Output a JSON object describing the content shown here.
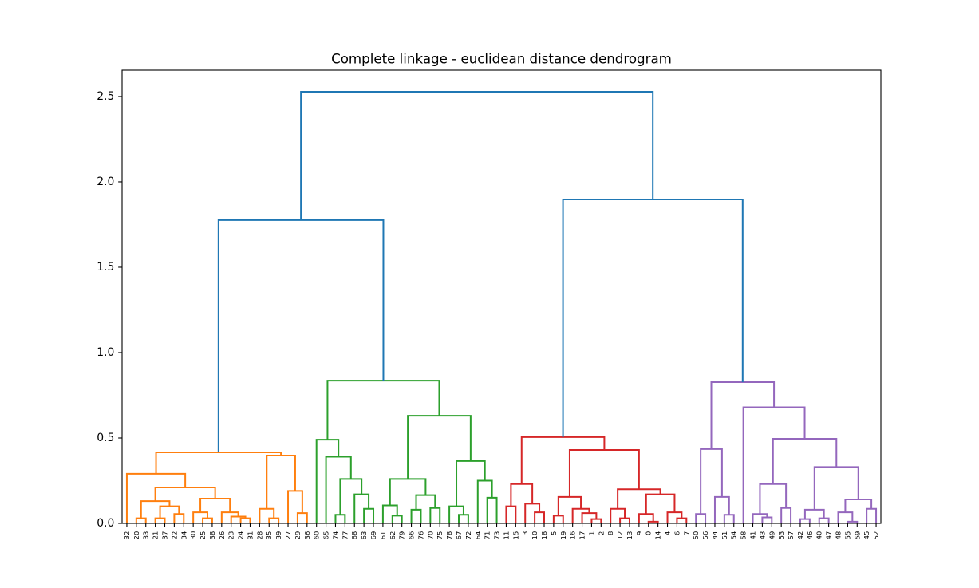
{
  "chart_data": {
    "type": "dendrogram",
    "title": "Complete linkage - euclidean distance dendrogram",
    "ylim": [
      0,
      2.654
    ],
    "yticks": [
      0,
      0.5,
      1.0,
      1.5,
      2.0,
      2.5
    ],
    "ytick_labels": [
      "0.0",
      "0.5",
      "1.0",
      "1.5",
      "2.0",
      "2.5"
    ],
    "leaf_labels": [
      "32",
      "20",
      "33",
      "21",
      "37",
      "22",
      "34",
      "30",
      "25",
      "38",
      "26",
      "23",
      "24",
      "31",
      "28",
      "35",
      "39",
      "27",
      "29",
      "36",
      "60",
      "65",
      "74",
      "77",
      "68",
      "63",
      "69",
      "61",
      "62",
      "79",
      "66",
      "76",
      "70",
      "75",
      "78",
      "67",
      "72",
      "64",
      "71",
      "73",
      "11",
      "15",
      "3",
      "10",
      "18",
      "5",
      "19",
      "16",
      "17",
      "1",
      "2",
      "8",
      "12",
      "13",
      "9",
      "0",
      "14",
      "4",
      "6",
      "7",
      "50",
      "56",
      "44",
      "51",
      "54",
      "58",
      "41",
      "43",
      "49",
      "53",
      "57",
      "42",
      "46",
      "40",
      "47",
      "48",
      "55",
      "59",
      "45",
      "52"
    ],
    "above_threshold_color": "#1f77b4",
    "tree": {
      "h": 2.528,
      "children": [
        {
          "h": 1.776,
          "children": [
            {
              "color": "#ff7f0e",
              "h": 0.416,
              "children": [
                {
                  "h": 0.29,
                  "children": [
                    32,
                    {
                      "h": 0.21,
                      "children": [
                        {
                          "h": 0.13,
                          "children": [
                            {
                              "h": 0.03,
                              "children": [
                                20,
                                33
                              ]
                            },
                            {
                              "h": 0.1,
                              "children": [
                                {
                                  "h": 0.03,
                                  "children": [
                                    21,
                                    37
                                  ]
                                },
                                {
                                  "h": 0.055,
                                  "children": [
                                    22,
                                    34
                                  ]
                                }
                              ]
                            }
                          ]
                        },
                        {
                          "h": 0.145,
                          "children": [
                            {
                              "h": 0.065,
                              "children": [
                                30,
                                {
                                  "h": 0.03,
                                  "children": [
                                    25,
                                    38
                                  ]
                                }
                              ]
                            },
                            {
                              "h": 0.065,
                              "children": [
                                26,
                                {
                                  "h": 0.04,
                                  "children": [
                                    23,
                                    {
                                      "h": 0.03,
                                      "children": [
                                        24,
                                        31
                                      ]
                                    }
                                  ]
                                }
                              ]
                            }
                          ]
                        }
                      ]
                    }
                  ]
                },
                {
                  "h": 0.397,
                  "children": [
                    {
                      "h": 0.085,
                      "children": [
                        28,
                        {
                          "h": 0.03,
                          "children": [
                            35,
                            39
                          ]
                        }
                      ]
                    },
                    {
                      "h": 0.19,
                      "children": [
                        27,
                        {
                          "h": 0.06,
                          "children": [
                            29,
                            36
                          ]
                        }
                      ]
                    }
                  ]
                }
              ]
            },
            {
              "color": "#2ca02c",
              "h": 0.836,
              "children": [
                {
                  "h": 0.49,
                  "children": [
                    60,
                    {
                      "h": 0.39,
                      "children": [
                        65,
                        {
                          "h": 0.26,
                          "children": [
                            {
                              "h": 0.05,
                              "children": [
                                74,
                                77
                              ]
                            },
                            {
                              "h": 0.17,
                              "children": [
                                68,
                                {
                                  "h": 0.085,
                                  "children": [
                                    63,
                                    69
                                  ]
                                }
                              ]
                            }
                          ]
                        }
                      ]
                    }
                  ]
                },
                {
                  "h": 0.63,
                  "children": [
                    {
                      "h": 0.26,
                      "children": [
                        {
                          "h": 0.105,
                          "children": [
                            61,
                            {
                              "h": 0.045,
                              "children": [
                                62,
                                79
                              ]
                            }
                          ]
                        },
                        {
                          "h": 0.165,
                          "children": [
                            {
                              "h": 0.08,
                              "children": [
                                66,
                                76
                              ]
                            },
                            {
                              "h": 0.09,
                              "children": [
                                70,
                                75
                              ]
                            }
                          ]
                        }
                      ]
                    },
                    {
                      "h": 0.365,
                      "children": [
                        {
                          "h": 0.1,
                          "children": [
                            78,
                            {
                              "h": 0.05,
                              "children": [
                                67,
                                72
                              ]
                            }
                          ]
                        },
                        {
                          "h": 0.25,
                          "children": [
                            64,
                            {
                              "h": 0.15,
                              "children": [
                                71,
                                73
                              ]
                            }
                          ]
                        }
                      ]
                    }
                  ]
                }
              ]
            }
          ]
        },
        {
          "h": 1.897,
          "children": [
            {
              "color": "#d62728",
              "h": 0.505,
              "children": [
                {
                  "h": 0.23,
                  "children": [
                    {
                      "h": 0.1,
                      "children": [
                        11,
                        15
                      ]
                    },
                    {
                      "h": 0.115,
                      "children": [
                        3,
                        {
                          "h": 0.065,
                          "children": [
                            10,
                            18
                          ]
                        }
                      ]
                    }
                  ]
                },
                {
                  "h": 0.43,
                  "children": [
                    {
                      "h": 0.155,
                      "children": [
                        {
                          "h": 0.045,
                          "children": [
                            5,
                            19
                          ]
                        },
                        {
                          "h": 0.085,
                          "children": [
                            16,
                            {
                              "h": 0.06,
                              "children": [
                                17,
                                {
                                  "h": 0.025,
                                  "children": [
                                    1,
                                    2
                                  ]
                                }
                              ]
                            }
                          ]
                        }
                      ]
                    },
                    {
                      "h": 0.2,
                      "children": [
                        {
                          "h": 0.085,
                          "children": [
                            8,
                            {
                              "h": 0.03,
                              "children": [
                                12,
                                13
                              ]
                            }
                          ]
                        },
                        {
                          "h": 0.17,
                          "children": [
                            {
                              "h": 0.055,
                              "children": [
                                9,
                                {
                                  "h": 0.01,
                                  "children": [
                                    0,
                                    14
                                  ]
                                }
                              ]
                            },
                            {
                              "h": 0.065,
                              "children": [
                                4,
                                {
                                  "h": 0.03,
                                  "children": [
                                    6,
                                    7
                                  ]
                                }
                              ]
                            }
                          ]
                        }
                      ]
                    }
                  ]
                }
              ]
            },
            {
              "color": "#9467bd",
              "h": 0.827,
              "children": [
                {
                  "h": 0.435,
                  "children": [
                    {
                      "h": 0.055,
                      "children": [
                        50,
                        56
                      ]
                    },
                    {
                      "h": 0.155,
                      "children": [
                        44,
                        {
                          "h": 0.05,
                          "children": [
                            51,
                            54
                          ]
                        }
                      ]
                    }
                  ]
                },
                {
                  "h": 0.68,
                  "children": [
                    58,
                    {
                      "h": 0.495,
                      "children": [
                        {
                          "h": 0.23,
                          "children": [
                            {
                              "h": 0.055,
                              "children": [
                                41,
                                {
                                  "h": 0.035,
                                  "children": [
                                    43,
                                    49
                                  ]
                                }
                              ]
                            },
                            {
                              "h": 0.09,
                              "children": [
                                53,
                                57
                              ]
                            }
                          ]
                        },
                        {
                          "h": 0.33,
                          "children": [
                            {
                              "h": 0.08,
                              "children": [
                                {
                                  "h": 0.025,
                                  "children": [
                                    42,
                                    46
                                  ]
                                },
                                {
                                  "h": 0.03,
                                  "children": [
                                    40,
                                    47
                                  ]
                                }
                              ]
                            },
                            {
                              "h": 0.14,
                              "children": [
                                {
                                  "h": 0.065,
                                  "children": [
                                    48,
                                    {
                                      "h": 0.01,
                                      "children": [
                                        55,
                                        59
                                      ]
                                    }
                                  ]
                                },
                                {
                                  "h": 0.085,
                                  "children": [
                                    45,
                                    52
                                  ]
                                }
                              ]
                            }
                          ]
                        }
                      ]
                    }
                  ]
                }
              ]
            }
          ]
        }
      ]
    }
  }
}
